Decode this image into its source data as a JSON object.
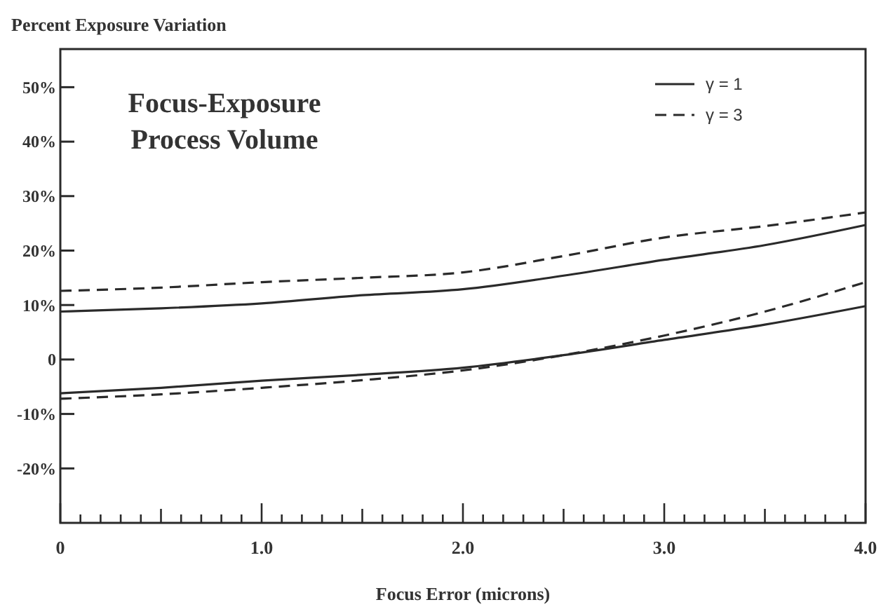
{
  "chart_data": {
    "type": "line",
    "title": "Focus-Exposure Process Volume",
    "xlabel": "Focus Error (microns)",
    "ylabel": "Percent Exposure Variation",
    "x": [
      0,
      0.5,
      1,
      1.5,
      2,
      2.5,
      3,
      3.5,
      4
    ],
    "series": [
      {
        "name": "γ = 1",
        "color": "#2a2a2a",
        "line_style": "solid",
        "values": [
          8.8,
          9.4,
          10.3,
          11.8,
          12.9,
          15.4,
          18.3,
          21,
          24.7
        ]
      },
      {
        "color": "#2a2a2a",
        "line_style": "solid",
        "values": [
          -6.2,
          -5.2,
          -3.9,
          -2.8,
          -1.5,
          0.8,
          3.6,
          6.4,
          9.8
        ]
      },
      {
        "name": "γ = 3",
        "color": "#2a2a2a",
        "line_style": "dashed",
        "values": [
          12.6,
          13.2,
          14.2,
          15,
          16,
          19,
          22.4,
          24.5,
          27
        ]
      },
      {
        "color": "#2a2a2a",
        "line_style": "dashed",
        "values": [
          -7.2,
          -6.4,
          -5.2,
          -3.8,
          -2,
          0.8,
          4.4,
          8.8,
          14.2
        ]
      }
    ],
    "xlim": [
      0,
      4
    ],
    "ylim": [
      -30,
      57
    ],
    "xticks": [
      {
        "value": 0,
        "label": "0"
      },
      {
        "value": 0.1,
        "label": null
      },
      {
        "value": 0.2,
        "label": null
      },
      {
        "value": 0.3,
        "label": null
      },
      {
        "value": 0.4,
        "label": null
      },
      {
        "value": 0.5,
        "label": null
      },
      {
        "value": 0.6,
        "label": null
      },
      {
        "value": 0.7,
        "label": null
      },
      {
        "value": 0.8,
        "label": null
      },
      {
        "value": 0.9,
        "label": null
      },
      {
        "value": 1,
        "label": "1.0"
      },
      {
        "value": 1.1,
        "label": null
      },
      {
        "value": 1.2,
        "label": null
      },
      {
        "value": 1.3,
        "label": null
      },
      {
        "value": 1.4,
        "label": null
      },
      {
        "value": 1.5,
        "label": null
      },
      {
        "value": 1.6,
        "label": null
      },
      {
        "value": 1.7,
        "label": null
      },
      {
        "value": 1.8,
        "label": null
      },
      {
        "value": 1.9,
        "label": null
      },
      {
        "value": 2,
        "label": "2.0"
      },
      {
        "value": 2.1,
        "label": null
      },
      {
        "value": 2.2,
        "label": null
      },
      {
        "value": 2.3,
        "label": null
      },
      {
        "value": 2.4,
        "label": null
      },
      {
        "value": 2.5,
        "label": null
      },
      {
        "value": 2.6,
        "label": null
      },
      {
        "value": 2.7,
        "label": null
      },
      {
        "value": 2.8,
        "label": null
      },
      {
        "value": 2.9,
        "label": null
      },
      {
        "value": 3,
        "label": "3.0"
      },
      {
        "value": 3.1,
        "label": null
      },
      {
        "value": 3.2,
        "label": null
      },
      {
        "value": 3.3,
        "label": null
      },
      {
        "value": 3.4,
        "label": null
      },
      {
        "value": 3.5,
        "label": null
      },
      {
        "value": 3.6,
        "label": null
      },
      {
        "value": 3.7,
        "label": null
      },
      {
        "value": 3.8,
        "label": null
      },
      {
        "value": 3.9,
        "label": null
      },
      {
        "value": 4,
        "label": "4.0"
      }
    ],
    "yticks": [
      {
        "value": -20,
        "label": "-20%"
      },
      {
        "value": -10,
        "label": "-10%"
      },
      0,
      {
        "value": 10,
        "label": "10%"
      },
      {
        "value": 20,
        "label": "20%"
      },
      {
        "value": 30,
        "label": "30%"
      },
      {
        "value": 40,
        "label": "40%"
      },
      {
        "value": 50,
        "label": "50%"
      }
    ],
    "legend": "top right",
    "grid": false,
    "marker": "none"
  }
}
